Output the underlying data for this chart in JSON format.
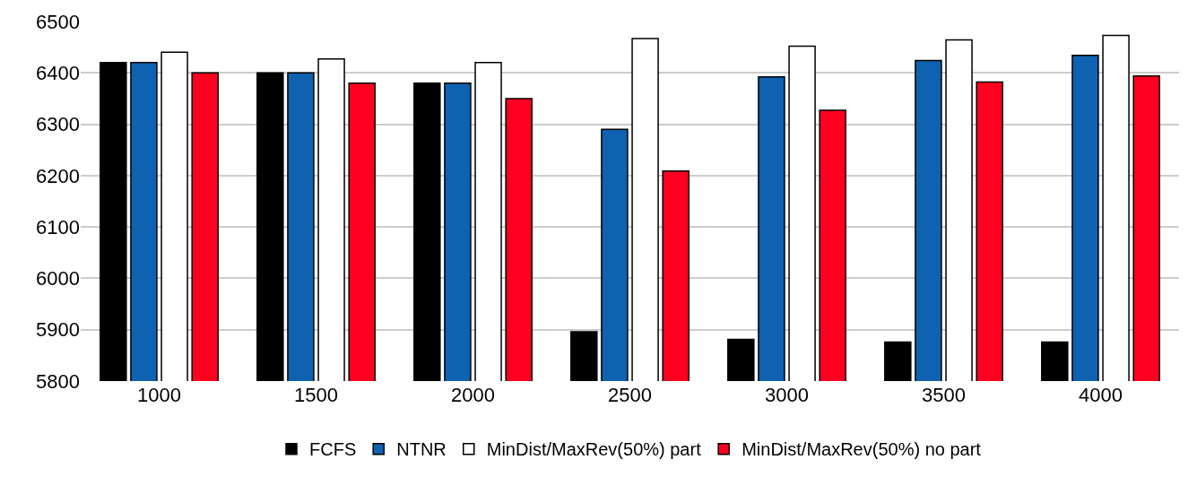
{
  "chart_data": {
    "type": "bar",
    "categories": [
      "1000",
      "1500",
      "2000",
      "2500",
      "3000",
      "3500",
      "4000"
    ],
    "series": [
      {
        "name": "FCFS",
        "color": "#000000",
        "values": [
          6420,
          6400,
          6380,
          5896,
          5881,
          5876,
          5876
        ]
      },
      {
        "name": "NTNR",
        "color": "#0e62b0",
        "values": [
          6420,
          6400,
          6380,
          6290,
          6392,
          6424,
          6434
        ]
      },
      {
        "name": "MinDist/MaxRev(50%) part",
        "color": "#ffffff",
        "values": [
          6440,
          6427,
          6420,
          6467,
          6452,
          6464,
          6473
        ]
      },
      {
        "name": "MinDist/MaxRev(50%) no part",
        "color": "#ff0020",
        "values": [
          6400,
          6380,
          6350,
          6209,
          6327,
          6382,
          6394
        ]
      }
    ],
    "ylim": [
      5800,
      6500
    ],
    "yticks": [
      5800,
      5900,
      6000,
      6100,
      6200,
      6300,
      6400,
      6500
    ],
    "grid": "y",
    "legend": "bottom"
  }
}
